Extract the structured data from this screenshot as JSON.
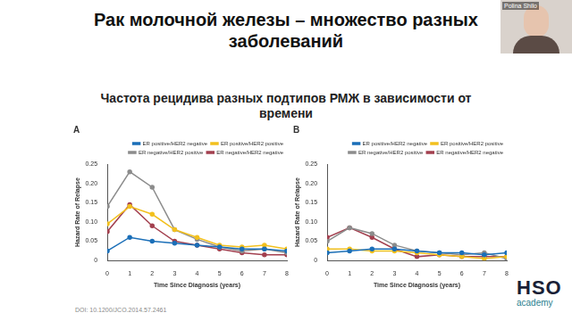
{
  "page": {
    "title": "Рак молочной железы – множество разных заболеваний",
    "subtitle": "Частота рецидива разных подтипов РМЖ в зависимости от времени",
    "doi": "DOI: 10.1200/JCO.2014.57.2461",
    "logo": {
      "name": "HSO",
      "tagline": "academy"
    },
    "speaker": "Polina Shilo"
  },
  "chart_data": [
    {
      "type": "line",
      "title": "A",
      "x_label": "Time Since Diagnosis (years)",
      "y_label": "Hazard Rate of Relapse",
      "x": [
        0,
        1,
        2,
        3,
        4,
        5,
        6,
        7,
        8
      ],
      "xlim": [
        0,
        8
      ],
      "xticks": [
        0,
        1,
        2,
        3,
        4,
        5,
        6,
        7,
        8
      ],
      "ylim": [
        0,
        0.25
      ],
      "yticks": [
        0,
        0.05,
        {
          "value": 0.1,
          "label": "0.10"
        },
        0.15,
        {
          "value": 0.2,
          "label": "0.20"
        },
        0.25
      ],
      "legend": "top-right",
      "marker": "circle",
      "grid": false,
      "series": [
        {
          "name": "ER positive/HER2 negative",
          "color": "#1b6fb8",
          "values": [
            0.025,
            0.06,
            0.05,
            0.045,
            0.04,
            0.035,
            0.03,
            0.03,
            0.025
          ]
        },
        {
          "name": "ER positive/HER2 positive",
          "color": "#f2c01e",
          "values": [
            0.095,
            0.14,
            0.12,
            0.08,
            0.06,
            0.04,
            0.035,
            0.04,
            0.03
          ]
        },
        {
          "name": "ER negative/HER2 positive",
          "color": "#8c8c8c",
          "values": [
            0.14,
            0.23,
            0.19,
            0.08,
            0.055,
            0.035,
            0.025,
            0.03,
            0.02
          ]
        },
        {
          "name": "ER negative/HER2 negative",
          "color": "#a3404f",
          "values": [
            0.075,
            0.145,
            0.09,
            0.05,
            0.04,
            0.03,
            0.02,
            0.015,
            0.015
          ]
        }
      ]
    },
    {
      "type": "line",
      "title": "B",
      "x_label": "Time Since Diagnosis (years)",
      "y_label": "Hazard Rate of Relapse",
      "x": [
        0,
        1,
        2,
        3,
        4,
        5,
        6,
        7,
        8
      ],
      "xlim": [
        0,
        8
      ],
      "xticks": [
        0,
        1,
        2,
        3,
        4,
        5,
        6,
        7,
        8
      ],
      "ylim": [
        0,
        0.25
      ],
      "yticks": [
        0,
        0.05,
        {
          "value": 0.1,
          "label": "0.10"
        },
        0.15,
        {
          "value": 0.2,
          "label": "0.20"
        },
        0.25
      ],
      "legend": "top-right",
      "marker": "circle",
      "grid": false,
      "series": [
        {
          "name": "ER positive/HER2 negative",
          "color": "#1b6fb8",
          "values": [
            0.02,
            0.025,
            0.03,
            0.03,
            0.025,
            0.02,
            0.02,
            0.015,
            0.02
          ]
        },
        {
          "name": "ER positive/HER2 positive",
          "color": "#f2c01e",
          "values": [
            0.03,
            0.03,
            0.025,
            0.025,
            0.02,
            0.015,
            0.01,
            0.005,
            0.01
          ]
        },
        {
          "name": "ER negative/HER2 positive",
          "color": "#8c8c8c",
          "values": [
            0.05,
            0.085,
            0.07,
            0.04,
            0.025,
            0.02,
            0.015,
            0.02,
            0.005
          ]
        },
        {
          "name": "ER negative/HER2 negative",
          "color": "#a3404f",
          "values": [
            0.06,
            0.085,
            0.06,
            0.03,
            0.01,
            0.015,
            0.01,
            0.01,
            0.01
          ]
        }
      ]
    }
  ]
}
